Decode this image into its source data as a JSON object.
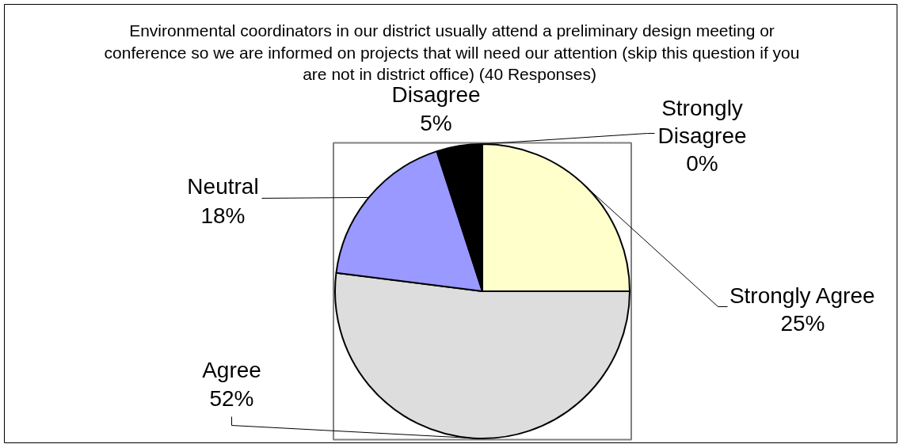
{
  "chart_data": {
    "type": "pie",
    "title": "Environmental coordinators in our district usually attend a preliminary design meeting or conference so we are informed on projects that will need our attention (skip this question if you are not in district office)  (40 Responses)",
    "categories": [
      "Strongly Agree",
      "Agree",
      "Neutral",
      "Disagree",
      "Strongly Disagree"
    ],
    "values": [
      25,
      52,
      18,
      5,
      0
    ],
    "colors": [
      "#ffffcc",
      "#dddddd",
      "#9999ff",
      "#000000",
      "#ccffff"
    ],
    "value_labels": [
      "25%",
      "52%",
      "18%",
      "5%",
      "0%"
    ]
  }
}
